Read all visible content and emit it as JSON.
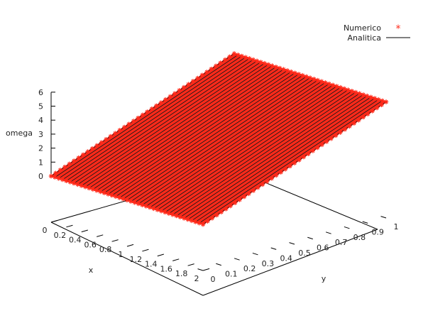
{
  "chart_data": {
    "type": "surface3d",
    "title": "",
    "xlabel": "x",
    "ylabel": "y",
    "zlabel": "omega",
    "xlim": [
      0,
      2
    ],
    "ylim": [
      0,
      1
    ],
    "zlim": [
      0,
      6
    ],
    "x_ticks": [
      "0",
      "0.2",
      "0.4",
      "0.6",
      "0.8",
      "1",
      "1.2",
      "1.4",
      "1.6",
      "1.8",
      "2"
    ],
    "y_ticks": [
      "0",
      "0.1",
      "0.2",
      "0.3",
      "0.4",
      "0.5",
      "0.6",
      "0.7",
      "0.8",
      "0.9",
      "1"
    ],
    "z_ticks": [
      "0",
      "1",
      "2",
      "3",
      "4",
      "5",
      "6"
    ],
    "surface_corners": [
      {
        "x": 0,
        "y": 0,
        "omega": 0
      },
      {
        "x": 2,
        "y": 0,
        "omega": 0
      },
      {
        "x": 2,
        "y": 1,
        "omega": 5
      },
      {
        "x": 0,
        "y": 1,
        "omega": 5
      }
    ],
    "legend_position": "top-right",
    "series": [
      {
        "name": "Numerico",
        "style": "points",
        "marker": "*",
        "color": "#ff2a1a"
      },
      {
        "name": "Analitica",
        "style": "lines",
        "color": "#000000"
      }
    ]
  }
}
